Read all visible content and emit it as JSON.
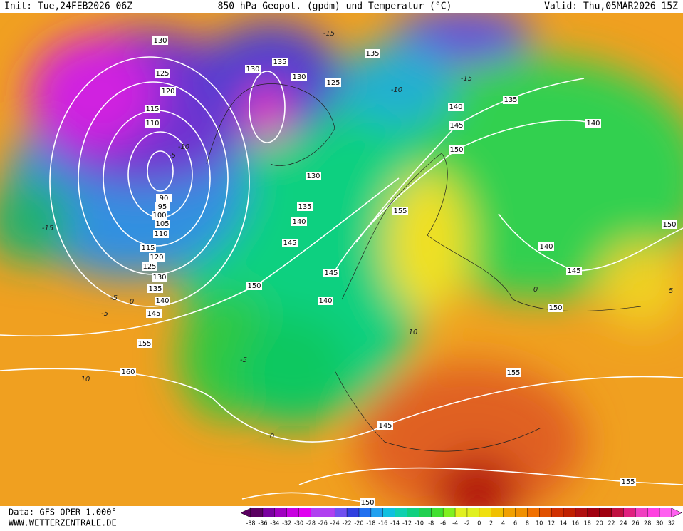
{
  "header": {
    "init": "Init: Tue,24FEB2026 06Z",
    "title": "850 hPa Geopot. (gpdm) und Temperatur (°C)",
    "valid": "Valid: Thu,05MAR2026 15Z"
  },
  "footer": {
    "data": "Data: GFS OPER 1.000°",
    "site": "WWW.WETTERZENTRALE.DE"
  },
  "geopotential_labels": [
    "130",
    "125",
    "120",
    "115",
    "110",
    "90",
    "95",
    "100",
    "105",
    "110",
    "115",
    "120",
    "125",
    "130",
    "135",
    "140",
    "145",
    "155",
    "160",
    "130",
    "135",
    "130",
    "125",
    "135",
    "140",
    "145",
    "150",
    "130",
    "135",
    "140",
    "145",
    "150",
    "145",
    "140",
    "155",
    "140",
    "140",
    "145",
    "150",
    "150",
    "155",
    "145",
    "150",
    "155",
    "135"
  ],
  "temperature_labels": [
    "-15",
    "-15",
    "-10",
    "-10",
    "-5",
    "-5",
    "0",
    "-5",
    "10",
    "10",
    "-5",
    "0",
    "5",
    "0",
    "-15"
  ],
  "colorbar_ticks": [
    -38,
    -36,
    -34,
    -32,
    -30,
    -28,
    -26,
    -24,
    -22,
    -20,
    -18,
    -16,
    -14,
    -12,
    -10,
    -8,
    -6,
    -4,
    -2,
    0,
    2,
    4,
    6,
    8,
    10,
    12,
    14,
    16,
    18,
    20,
    22,
    24,
    26,
    28,
    30,
    32
  ]
}
